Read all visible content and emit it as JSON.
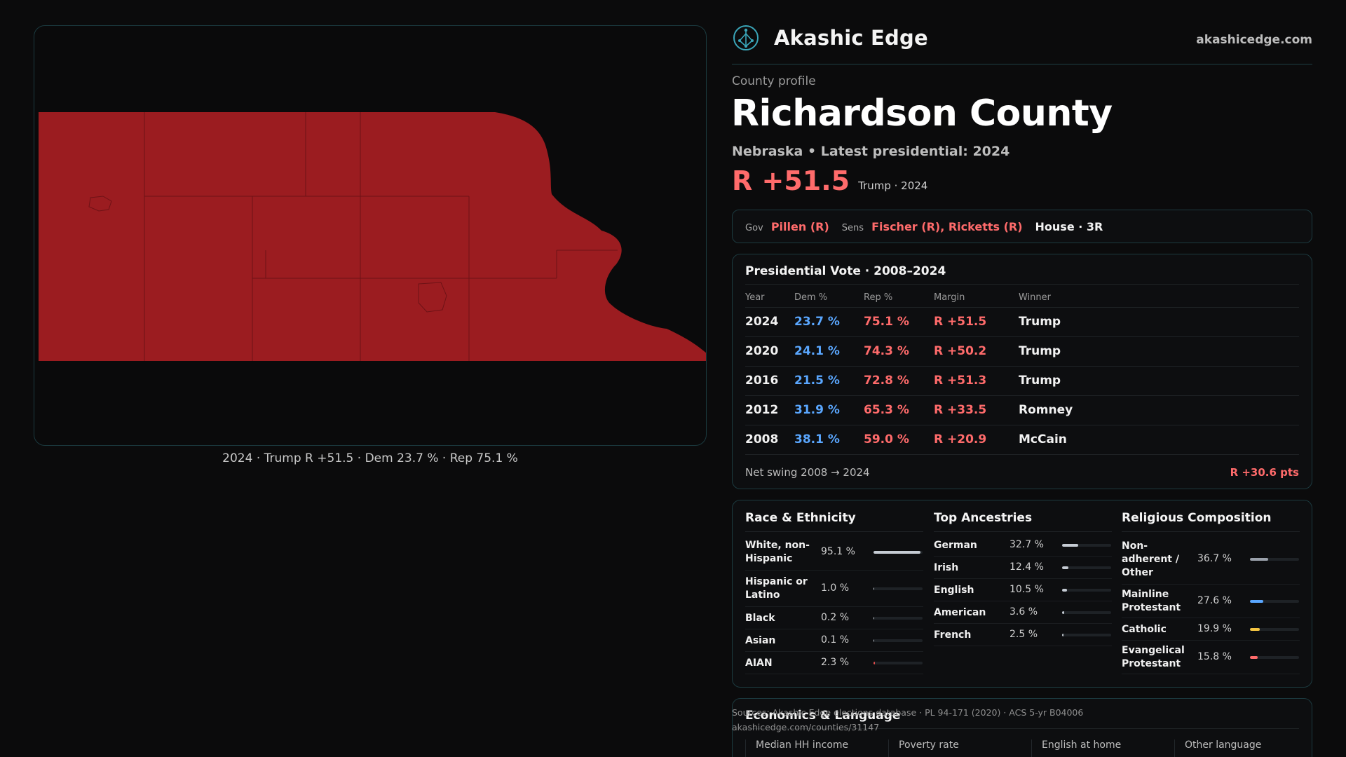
{
  "map": {
    "caption": "2024 · Trump R +51.5 · Dem 23.7 % · Rep 75.1 %",
    "fill_color": "#9b1c20",
    "line_color": "#7a1418"
  },
  "brand": {
    "name": "Akashic Edge",
    "site": "akashicedge.com",
    "logo_icon": "tree-of-life-icon"
  },
  "header": {
    "kicker": "County profile",
    "title": "Richardson County",
    "subtitle": "Nebraska • Latest presidential: 2024",
    "margin": "R +51.5",
    "margin_note": "Trump · 2024"
  },
  "officials": {
    "gov_label": "Gov",
    "gov_value": "Pillen (R)",
    "sens_label": "Sens",
    "sens_value": "Fischer (R), Ricketts (R)",
    "house": "House · 3R"
  },
  "vote_table": {
    "title": "Presidential Vote · 2008–2024",
    "headers": {
      "year": "Year",
      "dem": "Dem %",
      "rep": "Rep %",
      "margin": "Margin",
      "winner": "Winner"
    },
    "rows": [
      {
        "year": "2024",
        "dem": "23.7 %",
        "rep": "75.1 %",
        "margin": "R +51.5",
        "winner": "Trump"
      },
      {
        "year": "2020",
        "dem": "24.1 %",
        "rep": "74.3 %",
        "margin": "R +50.2",
        "winner": "Trump"
      },
      {
        "year": "2016",
        "dem": "21.5 %",
        "rep": "72.8 %",
        "margin": "R +51.3",
        "winner": "Trump"
      },
      {
        "year": "2012",
        "dem": "31.9 %",
        "rep": "65.3 %",
        "margin": "R +33.5",
        "winner": "Romney"
      },
      {
        "year": "2008",
        "dem": "38.1 %",
        "rep": "59.0 %",
        "margin": "R +20.9",
        "winner": "McCain"
      }
    ],
    "net_swing_label": "Net swing 2008 → 2024",
    "net_swing_value": "R +30.6 pts"
  },
  "race": {
    "title": "Race & Ethnicity",
    "items": [
      {
        "label": "White, non-Hispanic",
        "pct": "95.1 %",
        "level": 0.951,
        "color": "#c5cbd3"
      },
      {
        "label": "Hispanic or Latino",
        "pct": "1.0 %",
        "level": 0.01,
        "color": "#c5cbd3"
      },
      {
        "label": "Black",
        "pct": "0.2 %",
        "level": 0.002,
        "color": "#c5cbd3"
      },
      {
        "label": "Asian",
        "pct": "0.1 %",
        "level": 0.001,
        "color": "#c5cbd3"
      },
      {
        "label": "AIAN",
        "pct": "2.3 %",
        "level": 0.023,
        "color": "#e8504f"
      }
    ]
  },
  "ancestry": {
    "title": "Top Ancestries",
    "items": [
      {
        "label": "German",
        "pct": "32.7 %",
        "level": 0.327,
        "color": "#c5cbd3"
      },
      {
        "label": "Irish",
        "pct": "12.4 %",
        "level": 0.124,
        "color": "#c5cbd3"
      },
      {
        "label": "English",
        "pct": "10.5 %",
        "level": 0.105,
        "color": "#c5cbd3"
      },
      {
        "label": "American",
        "pct": "3.6 %",
        "level": 0.036,
        "color": "#c5cbd3"
      },
      {
        "label": "French",
        "pct": "2.5 %",
        "level": 0.025,
        "color": "#c5cbd3"
      }
    ]
  },
  "religion": {
    "title": "Religious Composition",
    "items": [
      {
        "label": "Non-adherent / Other",
        "pct": "36.7 %",
        "level": 0.367,
        "color": "#9aa1ab"
      },
      {
        "label": "Mainline Protestant",
        "pct": "27.6 %",
        "level": 0.276,
        "color": "#5aa7ff"
      },
      {
        "label": "Catholic",
        "pct": "19.9 %",
        "level": 0.199,
        "color": "#f5c542"
      },
      {
        "label": "Evangelical Protestant",
        "pct": "15.8 %",
        "level": 0.158,
        "color": "#ff6b6b"
      }
    ]
  },
  "economics": {
    "title": "Economics & Language",
    "cells": [
      "Median HH income",
      "Poverty rate",
      "English at home",
      "Other language"
    ]
  },
  "sources": {
    "line1": "Sources: Akashic Edge elections database · PL 94-171 (2020) · ACS 5-yr B04006",
    "line2": "akashicedge.com/counties/31147"
  }
}
